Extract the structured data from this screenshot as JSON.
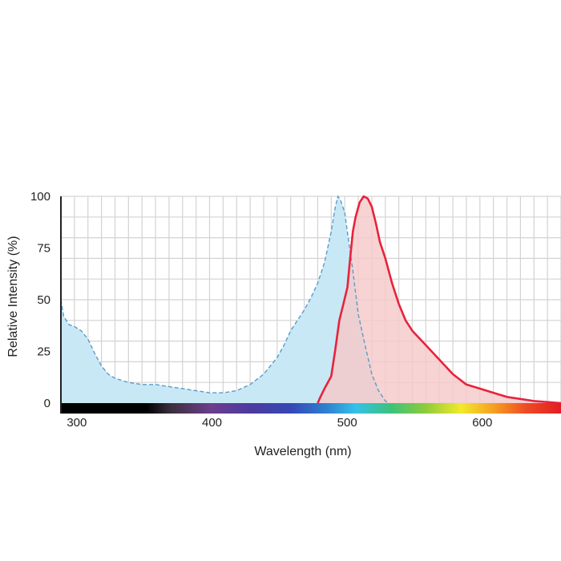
{
  "chart_data": {
    "type": "area",
    "title": "",
    "xlabel": "Wavelength (nm)",
    "ylabel": "Relative Intensity (%)",
    "xlim": [
      290,
      660
    ],
    "ylim": [
      0,
      100
    ],
    "x_ticks": [
      300,
      400,
      500,
      600
    ],
    "y_ticks": [
      0,
      25,
      50,
      75,
      100
    ],
    "grid": true,
    "x_grid_step": 10,
    "y_grid_step": 10,
    "legend": "none",
    "x_axis_band": "visible-spectrum gradient",
    "series": [
      {
        "kind": "excitation",
        "style": "dashed line, filled",
        "line_color": "#5b9bc8",
        "fill_color": "#c8e8f6",
        "points": [
          [
            290,
            50
          ],
          [
            292,
            42
          ],
          [
            296,
            38
          ],
          [
            300,
            37
          ],
          [
            305,
            35
          ],
          [
            310,
            31
          ],
          [
            315,
            24
          ],
          [
            320,
            18
          ],
          [
            325,
            14
          ],
          [
            330,
            12
          ],
          [
            340,
            10
          ],
          [
            350,
            9
          ],
          [
            360,
            9
          ],
          [
            370,
            8
          ],
          [
            380,
            7
          ],
          [
            390,
            6
          ],
          [
            400,
            5
          ],
          [
            410,
            5
          ],
          [
            420,
            6
          ],
          [
            430,
            9
          ],
          [
            440,
            14
          ],
          [
            450,
            22
          ],
          [
            455,
            28
          ],
          [
            460,
            35
          ],
          [
            465,
            40
          ],
          [
            470,
            45
          ],
          [
            475,
            51
          ],
          [
            480,
            58
          ],
          [
            485,
            68
          ],
          [
            490,
            83
          ],
          [
            493,
            95
          ],
          [
            495,
            100
          ],
          [
            497,
            98
          ],
          [
            500,
            92
          ],
          [
            503,
            78
          ],
          [
            506,
            64
          ],
          [
            510,
            43
          ],
          [
            515,
            28
          ],
          [
            520,
            14
          ],
          [
            525,
            6
          ],
          [
            530,
            1
          ],
          [
            533,
            0
          ]
        ]
      },
      {
        "kind": "emission",
        "style": "solid line, filled",
        "line_color": "#e8223c",
        "fill_color": "#f5c9c9",
        "points": [
          [
            480,
            0
          ],
          [
            482,
            3
          ],
          [
            485,
            7
          ],
          [
            490,
            13
          ],
          [
            493,
            26
          ],
          [
            496,
            40
          ],
          [
            499,
            48
          ],
          [
            502,
            56
          ],
          [
            504,
            70
          ],
          [
            506,
            83
          ],
          [
            508,
            90
          ],
          [
            511,
            97
          ],
          [
            514,
            100
          ],
          [
            517,
            99
          ],
          [
            520,
            95
          ],
          [
            523,
            87
          ],
          [
            526,
            78
          ],
          [
            530,
            70
          ],
          [
            535,
            58
          ],
          [
            540,
            48
          ],
          [
            545,
            40
          ],
          [
            550,
            35
          ],
          [
            560,
            28
          ],
          [
            570,
            21
          ],
          [
            580,
            14
          ],
          [
            590,
            9
          ],
          [
            600,
            7
          ],
          [
            610,
            5
          ],
          [
            620,
            3
          ],
          [
            630,
            2
          ],
          [
            640,
            1
          ],
          [
            650,
            0.5
          ],
          [
            660,
            0
          ]
        ]
      }
    ]
  }
}
